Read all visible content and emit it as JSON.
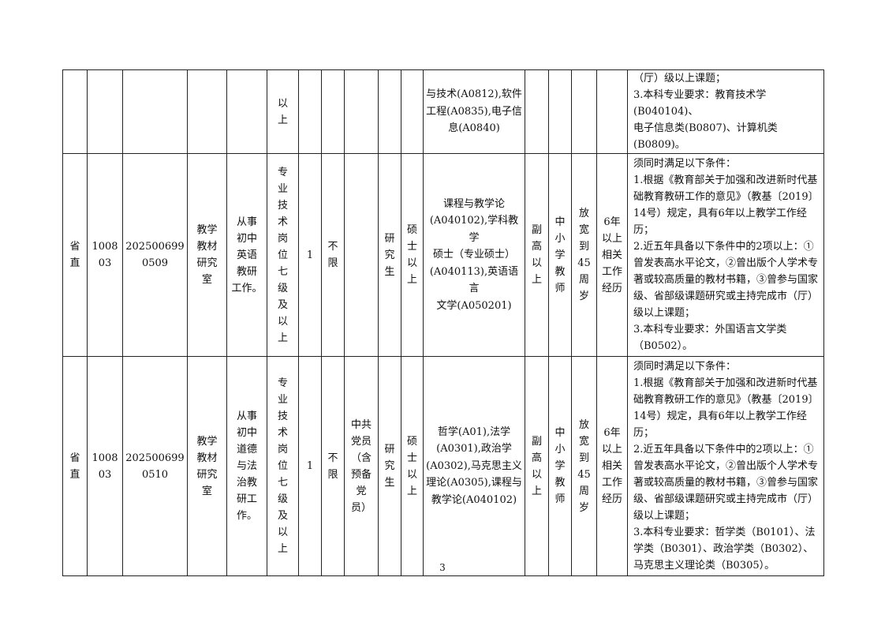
{
  "table": {
    "rows": [
      [
        "",
        "",
        "",
        "",
        "",
        "以\n上",
        "",
        "",
        "",
        "",
        "",
        "与技术(A0812),软件\n工程(A0835),电子信\n息(A0840)",
        "",
        "",
        "",
        "",
        "（厅）级以上课题；\n3.本科专业要求：教育技术学(B040104)、\n电子信息类(B0807)、计算机类(B0809)。"
      ],
      [
        "省\n直",
        "1008\n03",
        "202500699\n0509",
        "教学\n教材\n研究\n室",
        "从事\n初中\n英语\n教研\n工作。",
        "专\n业\n技\n术\n岗\n位\n七\n级\n及\n以\n上",
        "1",
        "不\n限",
        "",
        "研\n究\n生",
        "硕\n士\n以\n上",
        "课程与教学论\n(A040102),学科教学\n硕士（专业硕士）\n(A040113),英语语言\n文学(A050201)",
        "副\n高\n以\n上",
        "中\n小\n学\n教\n师",
        "放\n宽\n到\n45\n周\n岁",
        "6年\n以上\n相关\n工作\n经历",
        "须同时满足以下条件：\n1.根据《教育部关于加强和改进新时代基础教育教研工作的意见》（教基〔2019〕14号）规定，具有6年以上教学工作经历；\n2.近五年具备以下条件中的2项以上：①曾发表高水平论文，②曾出版个人学术专著或较高质量的教材书籍，③曾参与国家级、省部级课题研究或主持完成市（厅）级以上课题；\n3.本科专业要求：外国语言文学类（B0502）。"
      ],
      [
        "省\n直",
        "1008\n03",
        "202500699\n0510",
        "教学\n教材\n研究\n室",
        "从事\n初中\n道德\n与法\n治教\n研工\n作。",
        "专\n业\n技\n术\n岗\n位\n七\n级\n及\n以\n上",
        "1",
        "不\n限",
        "中共\n党员\n（含\n预备\n党\n员）",
        "研\n究\n生",
        "硕\n士\n以\n上",
        "哲学(A01),法学\n(A0301),政治学\n(A0302),马克思主义\n理论(A0305),课程与\n教学论(A040102)",
        "副\n高\n以\n上",
        "中\n小\n学\n教\n师",
        "放\n宽\n到\n45\n周\n岁",
        "6年\n以上\n相关\n工作\n经历",
        "须同时满足以下条件：\n1.根据《教育部关于加强和改进新时代基础教育教研工作的意见》（教基〔2019〕14号）规定，具有6年以上教学工作经历；\n2.近五年具备以下条件中的2项以上：①曾发表高水平论文，②曾出版个人学术专著或较高质量的教材书籍，③曾参与国家级、省部级课题研究或主持完成市（厅）级以上课题；\n3.本科专业要求：哲学类（B0101）、法学类（B0301）、政治学类（B0302）、马克思主义理论类（B0305）。"
      ]
    ]
  },
  "page_number": "3"
}
